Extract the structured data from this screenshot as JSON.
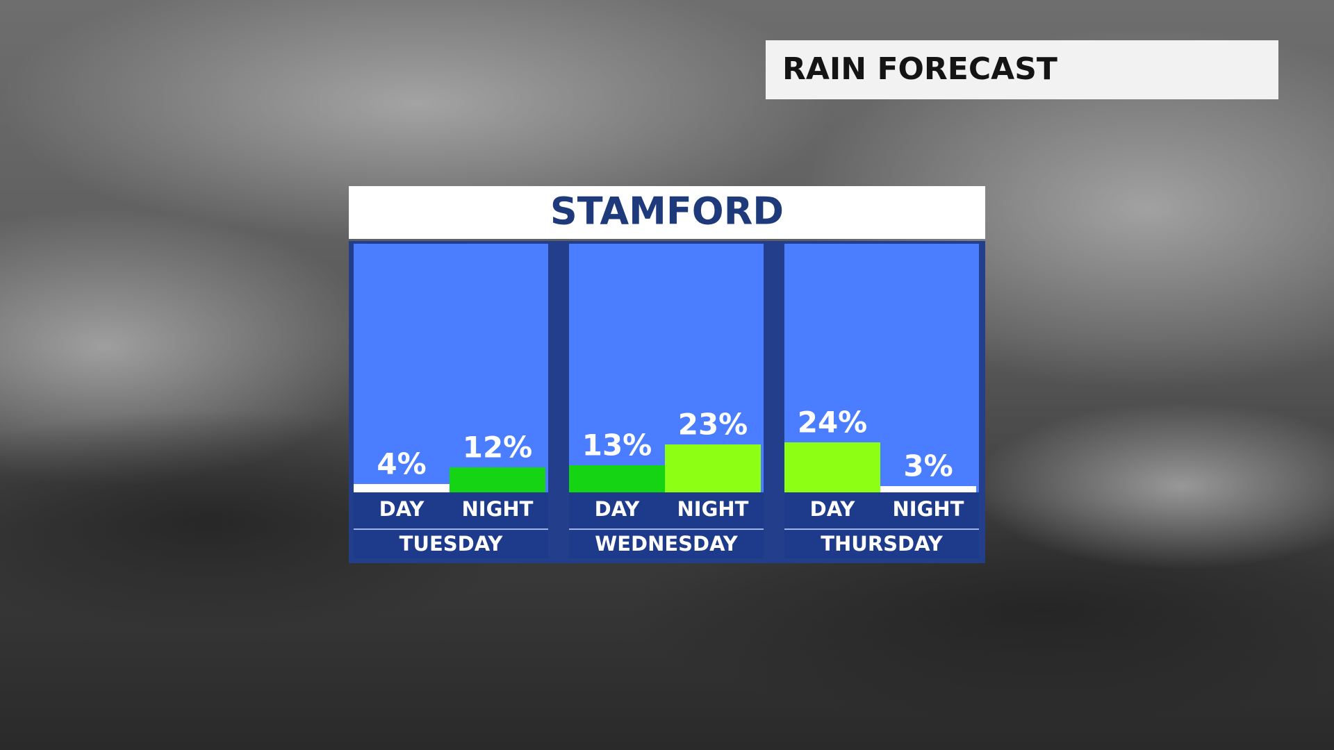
{
  "chart_data": {
    "type": "bar",
    "title": "RAIN FORECAST",
    "subtitle": "STAMFORD",
    "ylim": [
      0,
      100
    ],
    "groups": [
      {
        "name": "TUESDAY",
        "categories": [
          "DAY",
          "NIGHT"
        ],
        "values": [
          4,
          12
        ],
        "value_labels": [
          "4%",
          "12%"
        ],
        "colors": [
          "#ffffff",
          "#14d414"
        ]
      },
      {
        "name": "WEDNESDAY",
        "categories": [
          "DAY",
          "NIGHT"
        ],
        "values": [
          13,
          23
        ],
        "value_labels": [
          "13%",
          "23%"
        ],
        "colors": [
          "#14d414",
          "#8cff14"
        ]
      },
      {
        "name": "THURSDAY",
        "categories": [
          "DAY",
          "NIGHT"
        ],
        "values": [
          24,
          3
        ],
        "value_labels": [
          "24%",
          "3%"
        ],
        "colors": [
          "#8cff14",
          "#ffffff"
        ]
      }
    ]
  }
}
